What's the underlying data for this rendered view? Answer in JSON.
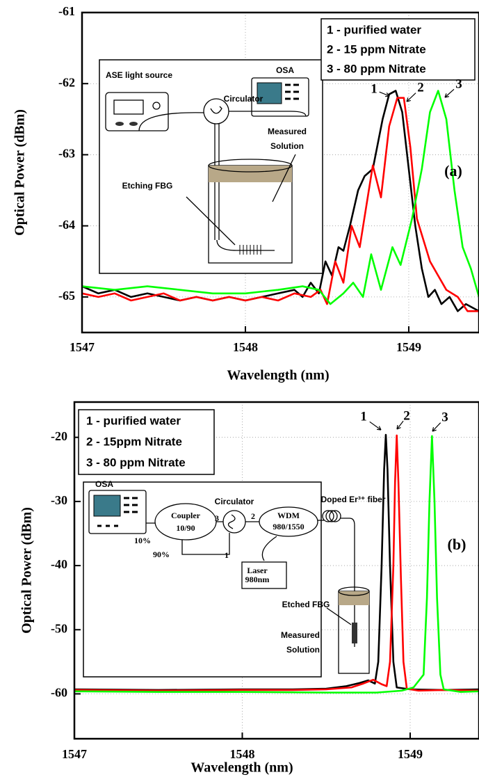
{
  "chart_data": [
    {
      "type": "line",
      "x_label": "Wavelength (nm)",
      "y_label": "Optical Power (dBm)",
      "xlim": [
        1547,
        1549.43
      ],
      "ylim": [
        -65.5,
        -61
      ],
      "xticks": [
        1547,
        1548,
        1549
      ],
      "yticks": [
        -65,
        -64,
        -63,
        -62,
        -61
      ],
      "grid": true,
      "legend": "upper right",
      "series": [
        {
          "name": "1 - purified water",
          "color": "#000000",
          "x": [
            1547,
            1547.1,
            1547.2,
            1547.3,
            1547.4,
            1547.5,
            1547.6,
            1547.7,
            1547.8,
            1547.9,
            1548,
            1548.1,
            1548.2,
            1548.3,
            1548.35,
            1548.4,
            1548.45,
            1548.49,
            1548.53,
            1548.57,
            1548.6,
            1548.64,
            1548.69,
            1548.73,
            1548.78,
            1548.84,
            1548.88,
            1548.92,
            1548.96,
            1549,
            1549.04,
            1549.08,
            1549.12,
            1549.16,
            1549.2,
            1549.25,
            1549.3,
            1549.35,
            1549.43
          ],
          "values": [
            -64.85,
            -64.95,
            -64.9,
            -65.0,
            -64.95,
            -65.0,
            -65.05,
            -65.0,
            -65.05,
            -65.0,
            -65.05,
            -65.0,
            -64.95,
            -64.9,
            -65.0,
            -64.8,
            -64.95,
            -64.5,
            -64.7,
            -64.3,
            -64.35,
            -64.0,
            -63.5,
            -63.3,
            -63.2,
            -62.5,
            -62.15,
            -62.1,
            -62.4,
            -63.2,
            -64.0,
            -64.6,
            -65.0,
            -64.9,
            -65.1,
            -65.0,
            -65.2,
            -65.1,
            -65.2
          ]
        },
        {
          "name": "2 - 15 ppm Nitrate",
          "color": "#ff0000",
          "x": [
            1547,
            1547.1,
            1547.2,
            1547.3,
            1547.4,
            1547.5,
            1547.6,
            1547.7,
            1547.8,
            1547.9,
            1548,
            1548.1,
            1548.2,
            1548.3,
            1548.4,
            1548.46,
            1548.5,
            1548.55,
            1548.6,
            1548.65,
            1548.7,
            1548.78,
            1548.83,
            1548.88,
            1548.93,
            1548.97,
            1549.01,
            1549.05,
            1549.09,
            1549.13,
            1549.18,
            1549.23,
            1549.3,
            1549.36,
            1549.43
          ],
          "values": [
            -64.95,
            -65.0,
            -64.95,
            -65.05,
            -65.0,
            -64.95,
            -65.05,
            -65.0,
            -65.05,
            -65.0,
            -65.05,
            -65.0,
            -65.05,
            -64.95,
            -65.0,
            -64.9,
            -65.1,
            -64.5,
            -64.8,
            -64.0,
            -64.3,
            -63.15,
            -63.6,
            -62.6,
            -62.2,
            -62.2,
            -62.9,
            -63.9,
            -64.2,
            -64.5,
            -64.7,
            -64.9,
            -65.0,
            -65.2,
            -65.2
          ]
        },
        {
          "name": "3 - 80 ppm Nitrate",
          "color": "#00ff00",
          "x": [
            1547,
            1547.2,
            1547.4,
            1547.6,
            1547.8,
            1548,
            1548.2,
            1548.35,
            1548.45,
            1548.52,
            1548.6,
            1548.66,
            1548.72,
            1548.77,
            1548.83,
            1548.9,
            1548.95,
            1549.02,
            1549.08,
            1549.13,
            1549.18,
            1549.23,
            1549.28,
            1549.33,
            1549.38,
            1549.43
          ],
          "values": [
            -64.85,
            -64.9,
            -64.85,
            -64.9,
            -64.95,
            -64.95,
            -64.9,
            -64.85,
            -64.9,
            -65.1,
            -64.95,
            -64.8,
            -65.0,
            -64.4,
            -64.9,
            -64.3,
            -64.55,
            -63.9,
            -63.2,
            -62.4,
            -62.1,
            -62.5,
            -63.5,
            -64.3,
            -64.6,
            -65.0
          ]
        }
      ],
      "peak_labels": [
        "1",
        "2",
        "3"
      ],
      "panel_label": "(a)",
      "inset_labels": [
        "ASE light source",
        "OSA",
        "Circulator",
        "Measured",
        "Solution",
        "Etching FBG"
      ]
    },
    {
      "type": "line",
      "x_label": "Wavelength (nm)",
      "y_label": "Optical Power (dBm)",
      "xlim": [
        1547,
        1549.41
      ],
      "ylim": [
        -67,
        -14.5
      ],
      "xticks": [
        1547,
        1548,
        1549
      ],
      "yticks": [
        -60,
        -50,
        -40,
        -30,
        -20
      ],
      "grid": true,
      "legend": "upper left",
      "series": [
        {
          "name": "1 - purified water",
          "color": "#000000",
          "x": [
            1547,
            1547.5,
            1548,
            1548.3,
            1548.5,
            1548.62,
            1548.7,
            1548.75,
            1548.79,
            1548.81,
            1548.83,
            1548.845,
            1548.855,
            1548.865,
            1548.88,
            1548.9,
            1548.92,
            1549,
            1549.2,
            1549.41
          ],
          "values": [
            -59.3,
            -59.4,
            -59.3,
            -59.3,
            -59.2,
            -58.8,
            -58.3,
            -57.9,
            -58.4,
            -55,
            -40,
            -25,
            -19.6,
            -25,
            -40,
            -55,
            -59,
            -59.3,
            -59.4,
            -59.3
          ]
        },
        {
          "name": "2 - 15ppm Nitrate",
          "color": "#ff0000",
          "x": [
            1547,
            1547.5,
            1548,
            1548.3,
            1548.5,
            1548.65,
            1548.72,
            1548.78,
            1548.83,
            1548.86,
            1548.88,
            1548.9,
            1548.91,
            1548.92,
            1548.93,
            1548.945,
            1548.96,
            1548.98,
            1549.05,
            1549.2,
            1549.41
          ],
          "values": [
            -59.4,
            -59.5,
            -59.4,
            -59.4,
            -59.3,
            -59.0,
            -58.4,
            -57.8,
            -58.5,
            -58.8,
            -55,
            -40,
            -27,
            -19.7,
            -27,
            -42,
            -55,
            -59.2,
            -59.5,
            -59.4,
            -59.5
          ]
        },
        {
          "name": "3 - 80 ppm Nitrate",
          "color": "#00ff00",
          "x": [
            1547,
            1547.5,
            1548,
            1548.5,
            1548.8,
            1548.95,
            1549.02,
            1549.08,
            1549.1,
            1549.115,
            1549.13,
            1549.145,
            1549.16,
            1549.18,
            1549.2,
            1549.3,
            1549.41
          ],
          "values": [
            -59.6,
            -59.7,
            -59.7,
            -59.8,
            -59.8,
            -59.5,
            -59.0,
            -57,
            -45,
            -30,
            -19.8,
            -30,
            -45,
            -57,
            -59.3,
            -59.7,
            -59.6
          ]
        }
      ],
      "peak_labels": [
        "1",
        "2",
        "3"
      ],
      "panel_label": "(b)",
      "inset_labels": [
        "OSA",
        "Circulator",
        "Doped Er³⁺ fiber",
        "Coupler",
        "10/90",
        "3",
        "2",
        "WDM",
        "980/1550",
        "10%",
        "90%",
        "1",
        "Laser",
        "980nm",
        "Etched FBG",
        "Measured",
        "Solution"
      ]
    }
  ]
}
